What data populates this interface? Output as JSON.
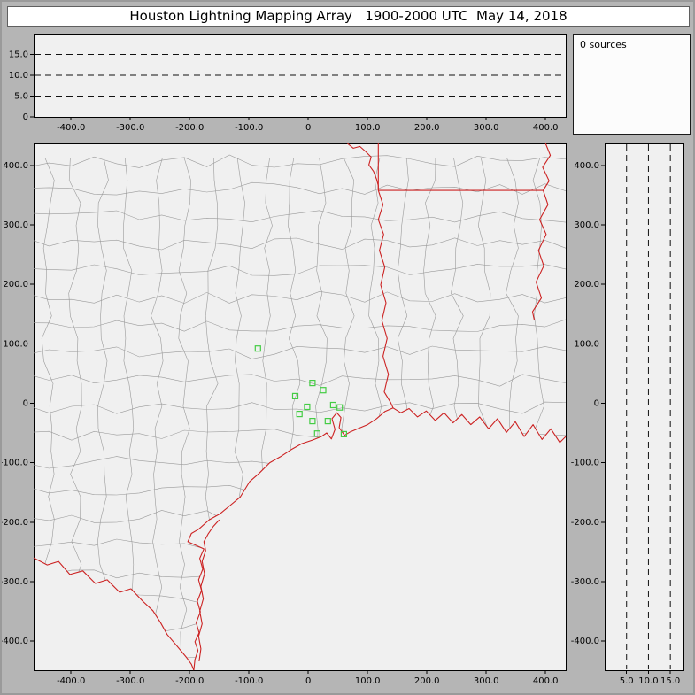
{
  "window": {
    "title": "Houston Lightning Mapping Array   1900-2000 UTC  May 14, 2018"
  },
  "status": {
    "sources_label": "0 sources"
  },
  "colors": {
    "background": "#b5b5b5",
    "panel_bg": "#f0f0f0",
    "sources_box_bg": "#fcfcfc",
    "frame_border": "#000000",
    "county_line": "#9a9a9a",
    "state_border": "#cc2222",
    "station_marker": "#44cc44",
    "dashed_line": "#111111",
    "text": "#000000"
  },
  "chart_data": {
    "type": "scatter",
    "title": "Houston Lightning Mapping Array   1900-2000 UTC  May 14, 2018",
    "time_range_utc": "1900-2000 UTC",
    "date": "May 14, 2018",
    "description": "LMA real-time display: plan-view map of Texas/Louisiana region with east-west and north-south altitude projection panels; zero lightning sources detected, green squares mark network stations.",
    "source_count": 0,
    "lightning_sources": [],
    "x_range_km": [
      -463,
      434
    ],
    "y_range_km": [
      -449,
      437
    ],
    "altitude_range_km": [
      0,
      20
    ],
    "ns_alt_range_km": [
      0,
      18
    ],
    "dashed_altitude_levels_km": [
      5,
      10,
      15
    ],
    "x_ticks": {
      "values": [
        -400,
        -300,
        -200,
        -100,
        0,
        100,
        200,
        300,
        400
      ],
      "labels": [
        "-400.0",
        "-300.0",
        "-200.0",
        "-100.0",
        "0",
        "100.0",
        "200.0",
        "300.0",
        "400.0"
      ]
    },
    "y_ticks": {
      "values": [
        400,
        300,
        200,
        100,
        0,
        -100,
        -200,
        -300,
        -400
      ],
      "labels": [
        "400.0",
        "300.0",
        "200.0",
        "100.0",
        "0",
        "-100.0",
        "-200.0",
        "-300.0",
        "-400.0"
      ]
    },
    "ew_alt_ticks": {
      "values": [
        15,
        10,
        5,
        0
      ],
      "labels": [
        "15.0",
        "10.0",
        "5.0",
        "0"
      ]
    },
    "ns_alt_ticks": {
      "values": [
        5,
        10,
        15
      ],
      "labels": [
        "5.0",
        "10.0",
        "15.0"
      ]
    },
    "stations_km": [
      [
        -85,
        92
      ],
      [
        -2,
        -6
      ],
      [
        7,
        34
      ],
      [
        -22,
        12
      ],
      [
        25,
        22
      ],
      [
        42,
        -3
      ],
      [
        53,
        -7
      ],
      [
        -15,
        -18
      ],
      [
        7,
        -30
      ],
      [
        33,
        -30
      ],
      [
        15,
        -51
      ],
      [
        60,
        -52
      ]
    ],
    "map_outlines_km": {
      "red_river": [
        [
          66,
          437
        ],
        [
          76,
          429
        ],
        [
          87,
          432
        ],
        [
          97,
          423
        ],
        [
          106,
          414
        ],
        [
          102,
          401
        ],
        [
          110,
          390
        ],
        [
          115,
          377
        ],
        [
          118,
          366
        ],
        [
          118,
          358
        ]
      ],
      "ok_ar_border": [
        [
          118,
          437
        ],
        [
          118,
          358
        ]
      ],
      "ar_la_border": [
        [
          118,
          358
        ],
        [
          396,
          358
        ]
      ],
      "tx_la_border": [
        [
          118,
          358
        ],
        [
          126,
          334
        ],
        [
          118,
          309
        ],
        [
          127,
          284
        ],
        [
          120,
          257
        ],
        [
          129,
          229
        ],
        [
          122,
          199
        ],
        [
          131,
          169
        ],
        [
          124,
          139
        ],
        [
          133,
          109
        ],
        [
          126,
          79
        ],
        [
          135,
          49
        ],
        [
          128,
          19
        ],
        [
          139,
          1
        ],
        [
          143,
          -8
        ]
      ],
      "mississippi_river": [
        [
          400,
          437
        ],
        [
          408,
          417
        ],
        [
          395,
          397
        ],
        [
          406,
          374
        ],
        [
          396,
          358
        ],
        [
          404,
          334
        ],
        [
          390,
          309
        ],
        [
          401,
          284
        ],
        [
          388,
          257
        ],
        [
          397,
          231
        ],
        [
          384,
          204
        ],
        [
          393,
          177
        ],
        [
          378,
          154
        ],
        [
          381,
          140
        ]
      ],
      "la_ms_border": [
        [
          381,
          140
        ],
        [
          434,
          140
        ]
      ],
      "rio_grande": [
        [
          -463,
          -260
        ],
        [
          -440,
          -272
        ],
        [
          -421,
          -266
        ],
        [
          -402,
          -288
        ],
        [
          -380,
          -282
        ],
        [
          -359,
          -303
        ],
        [
          -339,
          -297
        ],
        [
          -318,
          -318
        ],
        [
          -299,
          -312
        ],
        [
          -279,
          -333
        ],
        [
          -262,
          -349
        ],
        [
          -249,
          -369
        ],
        [
          -238,
          -389
        ],
        [
          -225,
          -404
        ],
        [
          -214,
          -417
        ],
        [
          -205,
          -428
        ],
        [
          -197,
          -439
        ],
        [
          -193,
          -449
        ]
      ],
      "gulf_coastline": [
        [
          -193,
          -449
        ],
        [
          -191,
          -431
        ],
        [
          -186,
          -416
        ],
        [
          -191,
          -401
        ],
        [
          -184,
          -386
        ],
        [
          -189,
          -369
        ],
        [
          -182,
          -351
        ],
        [
          -187,
          -333
        ],
        [
          -180,
          -315
        ],
        [
          -185,
          -297
        ],
        [
          -178,
          -279
        ],
        [
          -183,
          -261
        ],
        [
          -176,
          -245
        ],
        [
          -203,
          -233
        ],
        [
          -197,
          -219
        ],
        [
          -185,
          -212
        ],
        [
          -167,
          -196
        ],
        [
          -149,
          -186
        ],
        [
          -132,
          -172
        ],
        [
          -115,
          -158
        ],
        [
          -99,
          -132
        ],
        [
          -83,
          -118
        ],
        [
          -65,
          -100
        ],
        [
          -47,
          -90
        ],
        [
          -29,
          -78
        ],
        [
          -11,
          -68
        ],
        [
          7,
          -62
        ],
        [
          22,
          -56
        ],
        [
          31,
          -50
        ],
        [
          39,
          -60
        ],
        [
          45,
          -44
        ],
        [
          40,
          -26
        ],
        [
          48,
          -16
        ],
        [
          55,
          -24
        ],
        [
          52,
          -41
        ],
        [
          61,
          -54
        ],
        [
          71,
          -48
        ],
        [
          85,
          -42
        ],
        [
          100,
          -36
        ],
        [
          115,
          -26
        ],
        [
          129,
          -14
        ],
        [
          143,
          -8
        ],
        [
          156,
          -16
        ],
        [
          170,
          -9
        ],
        [
          184,
          -23
        ],
        [
          199,
          -13
        ],
        [
          214,
          -29
        ],
        [
          229,
          -16
        ],
        [
          244,
          -33
        ],
        [
          259,
          -19
        ],
        [
          274,
          -36
        ],
        [
          289,
          -23
        ],
        [
          304,
          -43
        ],
        [
          319,
          -26
        ],
        [
          334,
          -49
        ],
        [
          349,
          -31
        ],
        [
          364,
          -56
        ],
        [
          379,
          -36
        ],
        [
          394,
          -61
        ],
        [
          409,
          -43
        ],
        [
          424,
          -66
        ],
        [
          434,
          -56
        ]
      ],
      "barrier_island": [
        [
          -184,
          -434
        ],
        [
          -181,
          -413
        ],
        [
          -185,
          -392
        ],
        [
          -179,
          -371
        ],
        [
          -183,
          -350
        ],
        [
          -177,
          -329
        ],
        [
          -181,
          -308
        ],
        [
          -175,
          -287
        ],
        [
          -179,
          -266
        ],
        [
          -173,
          -248
        ],
        [
          -176,
          -233
        ],
        [
          -169,
          -220
        ],
        [
          -160,
          -207
        ],
        [
          -150,
          -196
        ]
      ]
    }
  }
}
